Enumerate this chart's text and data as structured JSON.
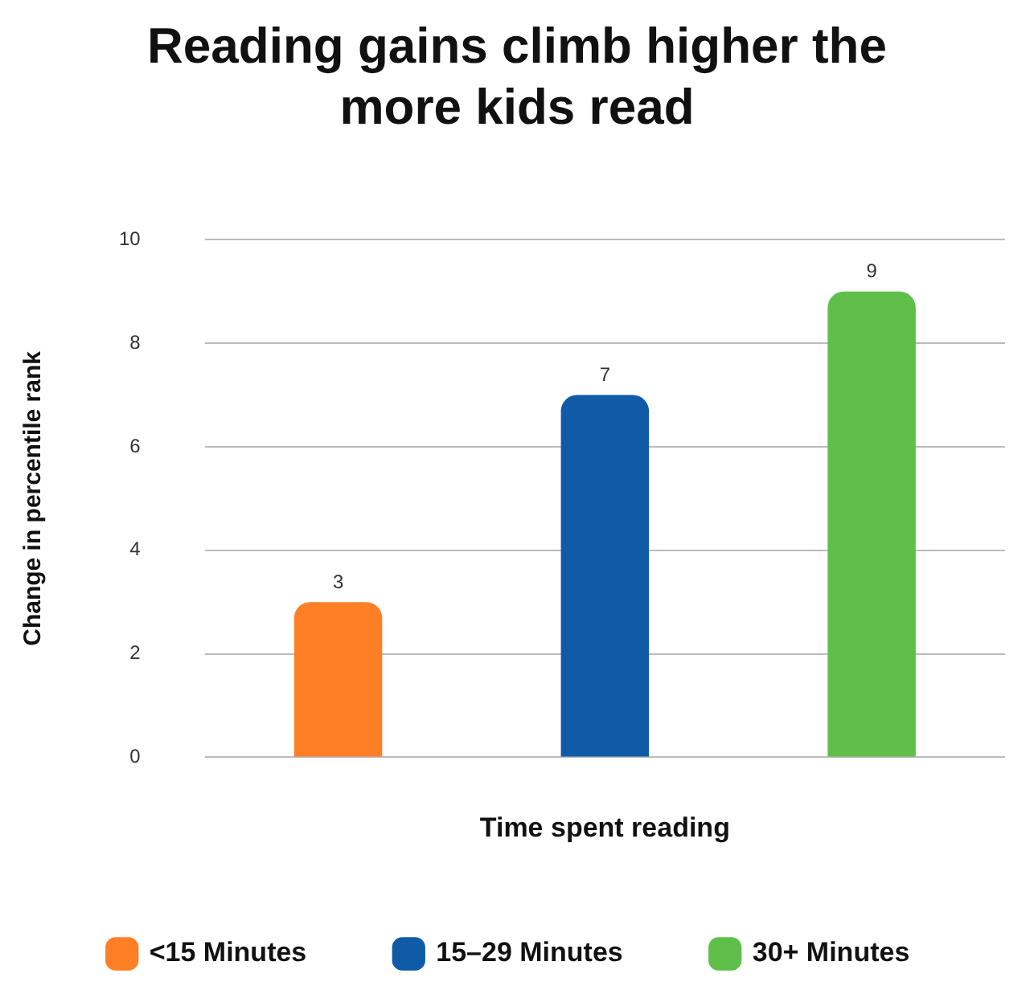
{
  "chart_data": {
    "type": "bar",
    "title": "Reading gains climb higher the more kids read",
    "xlabel": "Time spent reading",
    "ylabel": "Change in percentile rank",
    "categories": [
      null,
      null,
      null
    ],
    "series": [
      {
        "name": "<15 Minutes",
        "color": "#ff7f27",
        "values": [
          3,
          null,
          null
        ]
      },
      {
        "name": "15–29 Minutes",
        "color": "#0f5ba7",
        "values": [
          null,
          7,
          null
        ]
      },
      {
        "name": "30+ Minutes",
        "color": "#5fbf4a",
        "values": [
          null,
          null,
          9
        ]
      }
    ],
    "ylim": [
      0,
      10
    ],
    "yticks": [
      0,
      2,
      4,
      6,
      8,
      10
    ],
    "grid": "y",
    "legend": "bottom",
    "data_labels": true
  }
}
